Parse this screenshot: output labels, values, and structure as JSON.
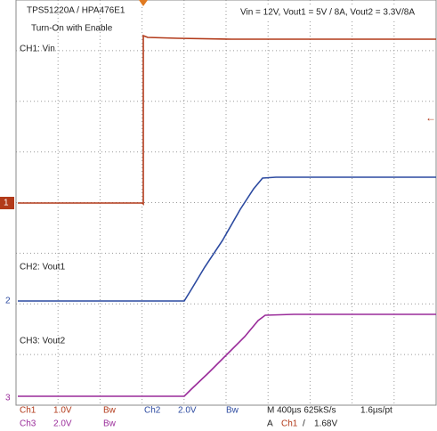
{
  "header": {
    "title": "TPS51220A / HPA476E1",
    "subtitle": "Turn-On with Enable",
    "conditions": "Vin = 12V, Vout1 = 5V / 8A, Vout2 = 3.3V/8A"
  },
  "traces": [
    {
      "label": "CH1: Vin",
      "marker": "1"
    },
    {
      "label": "CH2: Vout1",
      "marker": "2"
    },
    {
      "label": "CH3: Vout2",
      "marker": "3"
    }
  ],
  "status": {
    "row1": [
      "Ch1",
      "1.0V",
      "Bw",
      "Ch2",
      "2.0V",
      "Bw",
      "M 400µs 625kS/s",
      "1.6µs/pt"
    ],
    "row2": [
      "Ch3",
      "2.0V",
      "Bw",
      "A",
      "Ch1",
      "/",
      "1.68V"
    ]
  }
}
